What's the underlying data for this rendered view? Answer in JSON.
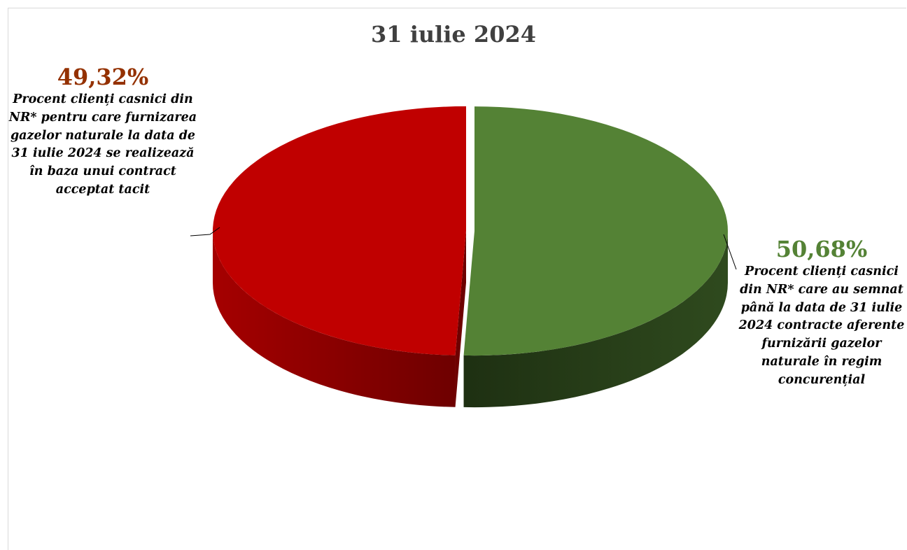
{
  "colors": {
    "red_top": "#c00000",
    "red_side_light": "#a50000",
    "red_side_dark": "#6e0000",
    "green_top": "#548235",
    "green_side_light": "#2f4a1e",
    "green_side_dark": "#1e3012",
    "red_label": "#943100",
    "green_label": "#548235"
  },
  "chart_data": {
    "type": "pie",
    "style": "3d",
    "title": "31 iulie 2024",
    "slices": [
      {
        "value": 49.32,
        "value_label": "49,32%",
        "label": "Procent clienți casnici din NR* pentru care furnizarea gazelor naturale la data de 31 iulie 2024 se realizează în baza unui contract acceptat tacit",
        "color": "#c00000"
      },
      {
        "value": 50.68,
        "value_label": "50,68%",
        "label": "Procent clienți casnici din NR* care au semnat până la data de 31 iulie 2024 contracte aferente furnizării gazelor naturale în regim concurențial",
        "color": "#548235"
      }
    ]
  }
}
